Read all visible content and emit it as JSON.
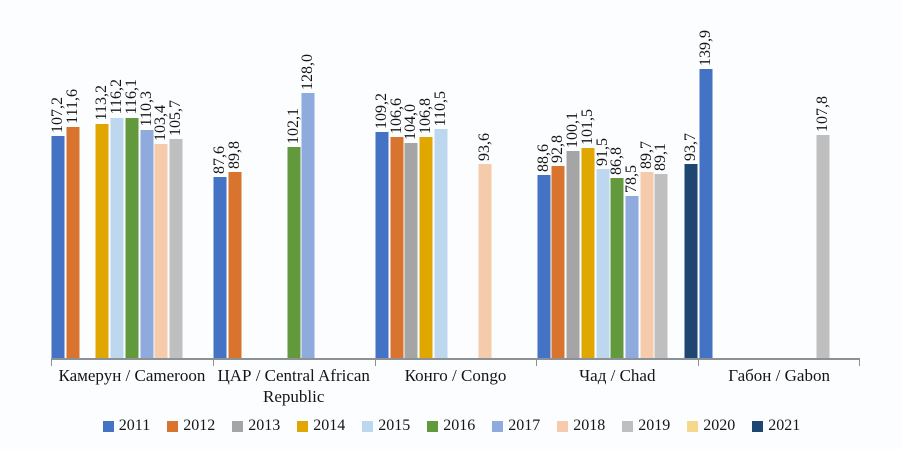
{
  "chart_data": {
    "type": "bar",
    "title": "",
    "xlabel": "",
    "ylabel": "",
    "categories": [
      "Камерун / Cameroon",
      "ЦАР / Central African Republic",
      "Конго / Congo",
      "Чад / Chad",
      "Габон / Gabon"
    ],
    "category_label_lines": [
      [
        "Камерун / Cameroon"
      ],
      [
        "ЦАР / Central African",
        "Republic"
      ],
      [
        "Конго / Congo"
      ],
      [
        "Чад / Chad"
      ],
      [
        "Габон / Gabon"
      ]
    ],
    "series": [
      {
        "name": "2011",
        "color": "#4472C4",
        "values": [
          107.2,
          87.6,
          109.2,
          88.6,
          139.9
        ]
      },
      {
        "name": "2012",
        "color": "#D9742E",
        "values": [
          111.6,
          89.8,
          106.6,
          92.8,
          null
        ]
      },
      {
        "name": "2013",
        "color": "#A5A5A5",
        "values": [
          null,
          null,
          104.0,
          100.1,
          null
        ]
      },
      {
        "name": "2014",
        "color": "#DFA700",
        "values": [
          113.2,
          null,
          106.8,
          101.5,
          null
        ]
      },
      {
        "name": "2015",
        "color": "#BDD7EE",
        "values": [
          116.2,
          null,
          110.5,
          91.5,
          null
        ]
      },
      {
        "name": "2016",
        "color": "#61993C",
        "values": [
          116.1,
          102.1,
          null,
          86.8,
          null
        ]
      },
      {
        "name": "2017",
        "color": "#8FAADC",
        "values": [
          110.3,
          128.0,
          null,
          78.5,
          null
        ]
      },
      {
        "name": "2018",
        "color": "#F6CBAB",
        "values": [
          103.4,
          null,
          93.6,
          89.7,
          null
        ]
      },
      {
        "name": "2019",
        "color": "#BFBFBF",
        "values": [
          105.7,
          null,
          null,
          89.1,
          107.8
        ]
      },
      {
        "name": "2020",
        "color": "#F5D88C",
        "values": [
          null,
          null,
          null,
          null,
          null
        ]
      },
      {
        "name": "2021",
        "color": "#1F4571",
        "values": [
          null,
          null,
          null,
          93.7,
          null
        ]
      }
    ],
    "ylim": [
      0,
      173
    ],
    "grid": false,
    "y_axis_labels_visible": false,
    "legend_position": "bottom",
    "data_labels": {
      "rotation": 90,
      "decimal_separator": ",",
      "decimals": 1
    }
  },
  "style": {
    "background": "#FBFDFE",
    "axis_color": "#8C9196",
    "text_color": "#161616"
  }
}
